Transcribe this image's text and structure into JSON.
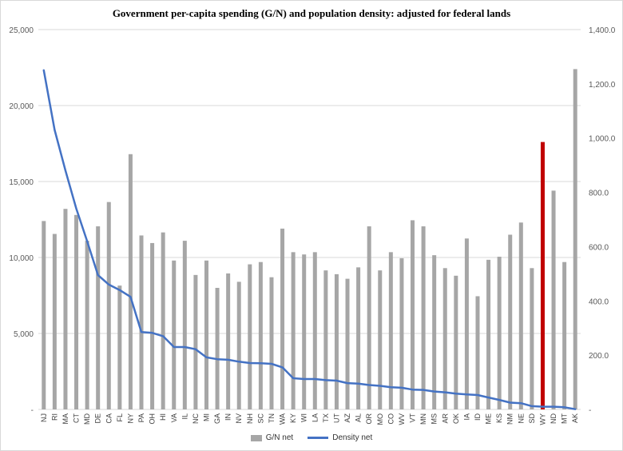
{
  "chart_data": {
    "type": "bar",
    "title": "Government per-capita spending (G/N) and population density: adjusted for federal lands",
    "categories": [
      "NJ",
      "RI",
      "MA",
      "CT",
      "MD",
      "DE",
      "CA",
      "FL",
      "NY",
      "PA",
      "OH",
      "HI",
      "VA",
      "IL",
      "NC",
      "MI",
      "GA",
      "IN",
      "NV",
      "NH",
      "SC",
      "TN",
      "WA",
      "KY",
      "WI",
      "LA",
      "TX",
      "UT",
      "AZ",
      "AL",
      "OR",
      "MO",
      "CO",
      "WV",
      "VT",
      "MN",
      "MS",
      "AR",
      "OK",
      "IA",
      "ID",
      "ME",
      "KS",
      "NM",
      "NE",
      "SD",
      "WY",
      "ND",
      "MT",
      "AK"
    ],
    "series": [
      {
        "name": "G/N net",
        "type": "bar",
        "axis": "left",
        "color": "#a6a6a6",
        "values": [
          12400,
          11550,
          13200,
          12800,
          11100,
          12050,
          13650,
          8150,
          16800,
          11450,
          10950,
          11650,
          9800,
          11100,
          8850,
          9800,
          8000,
          8950,
          8400,
          9550,
          9700,
          8700,
          11900,
          10350,
          10200,
          10350,
          9150,
          8900,
          8600,
          9350,
          12050,
          9150,
          10350,
          9950,
          12450,
          12050,
          10150,
          9300,
          8800,
          11250,
          7450,
          9850,
          10050,
          11500,
          12300,
          9300,
          17600,
          14400,
          9700,
          22400
        ]
      },
      {
        "name": "Density net",
        "type": "line",
        "axis": "right",
        "color": "#4472c4",
        "values": [
          1250,
          1030,
          880,
          740,
          620,
          495,
          460,
          440,
          415,
          285,
          282,
          270,
          230,
          230,
          222,
          192,
          185,
          183,
          176,
          171,
          170,
          168,
          155,
          115,
          112,
          112,
          108,
          106,
          97,
          95,
          90,
          87,
          82,
          80,
          73,
          72,
          66,
          63,
          58,
          55,
          53,
          44,
          35,
          25,
          23,
          12,
          10,
          10,
          8,
          1
        ]
      }
    ],
    "highlight": {
      "category": "WY",
      "color": "#c00000"
    },
    "y_left": {
      "min": 0,
      "max": 25000,
      "ticks": [
        "-",
        "5,000",
        "10,000",
        "15,000",
        "20,000",
        "25,000"
      ]
    },
    "y_right": {
      "min": 0,
      "max": 1400,
      "ticks": [
        "-",
        "200.0",
        "400.0",
        "600.0",
        "800.0",
        "1,000.0",
        "1,200.0",
        "1,400.0"
      ]
    },
    "grid": true,
    "legend_position": "bottom"
  }
}
